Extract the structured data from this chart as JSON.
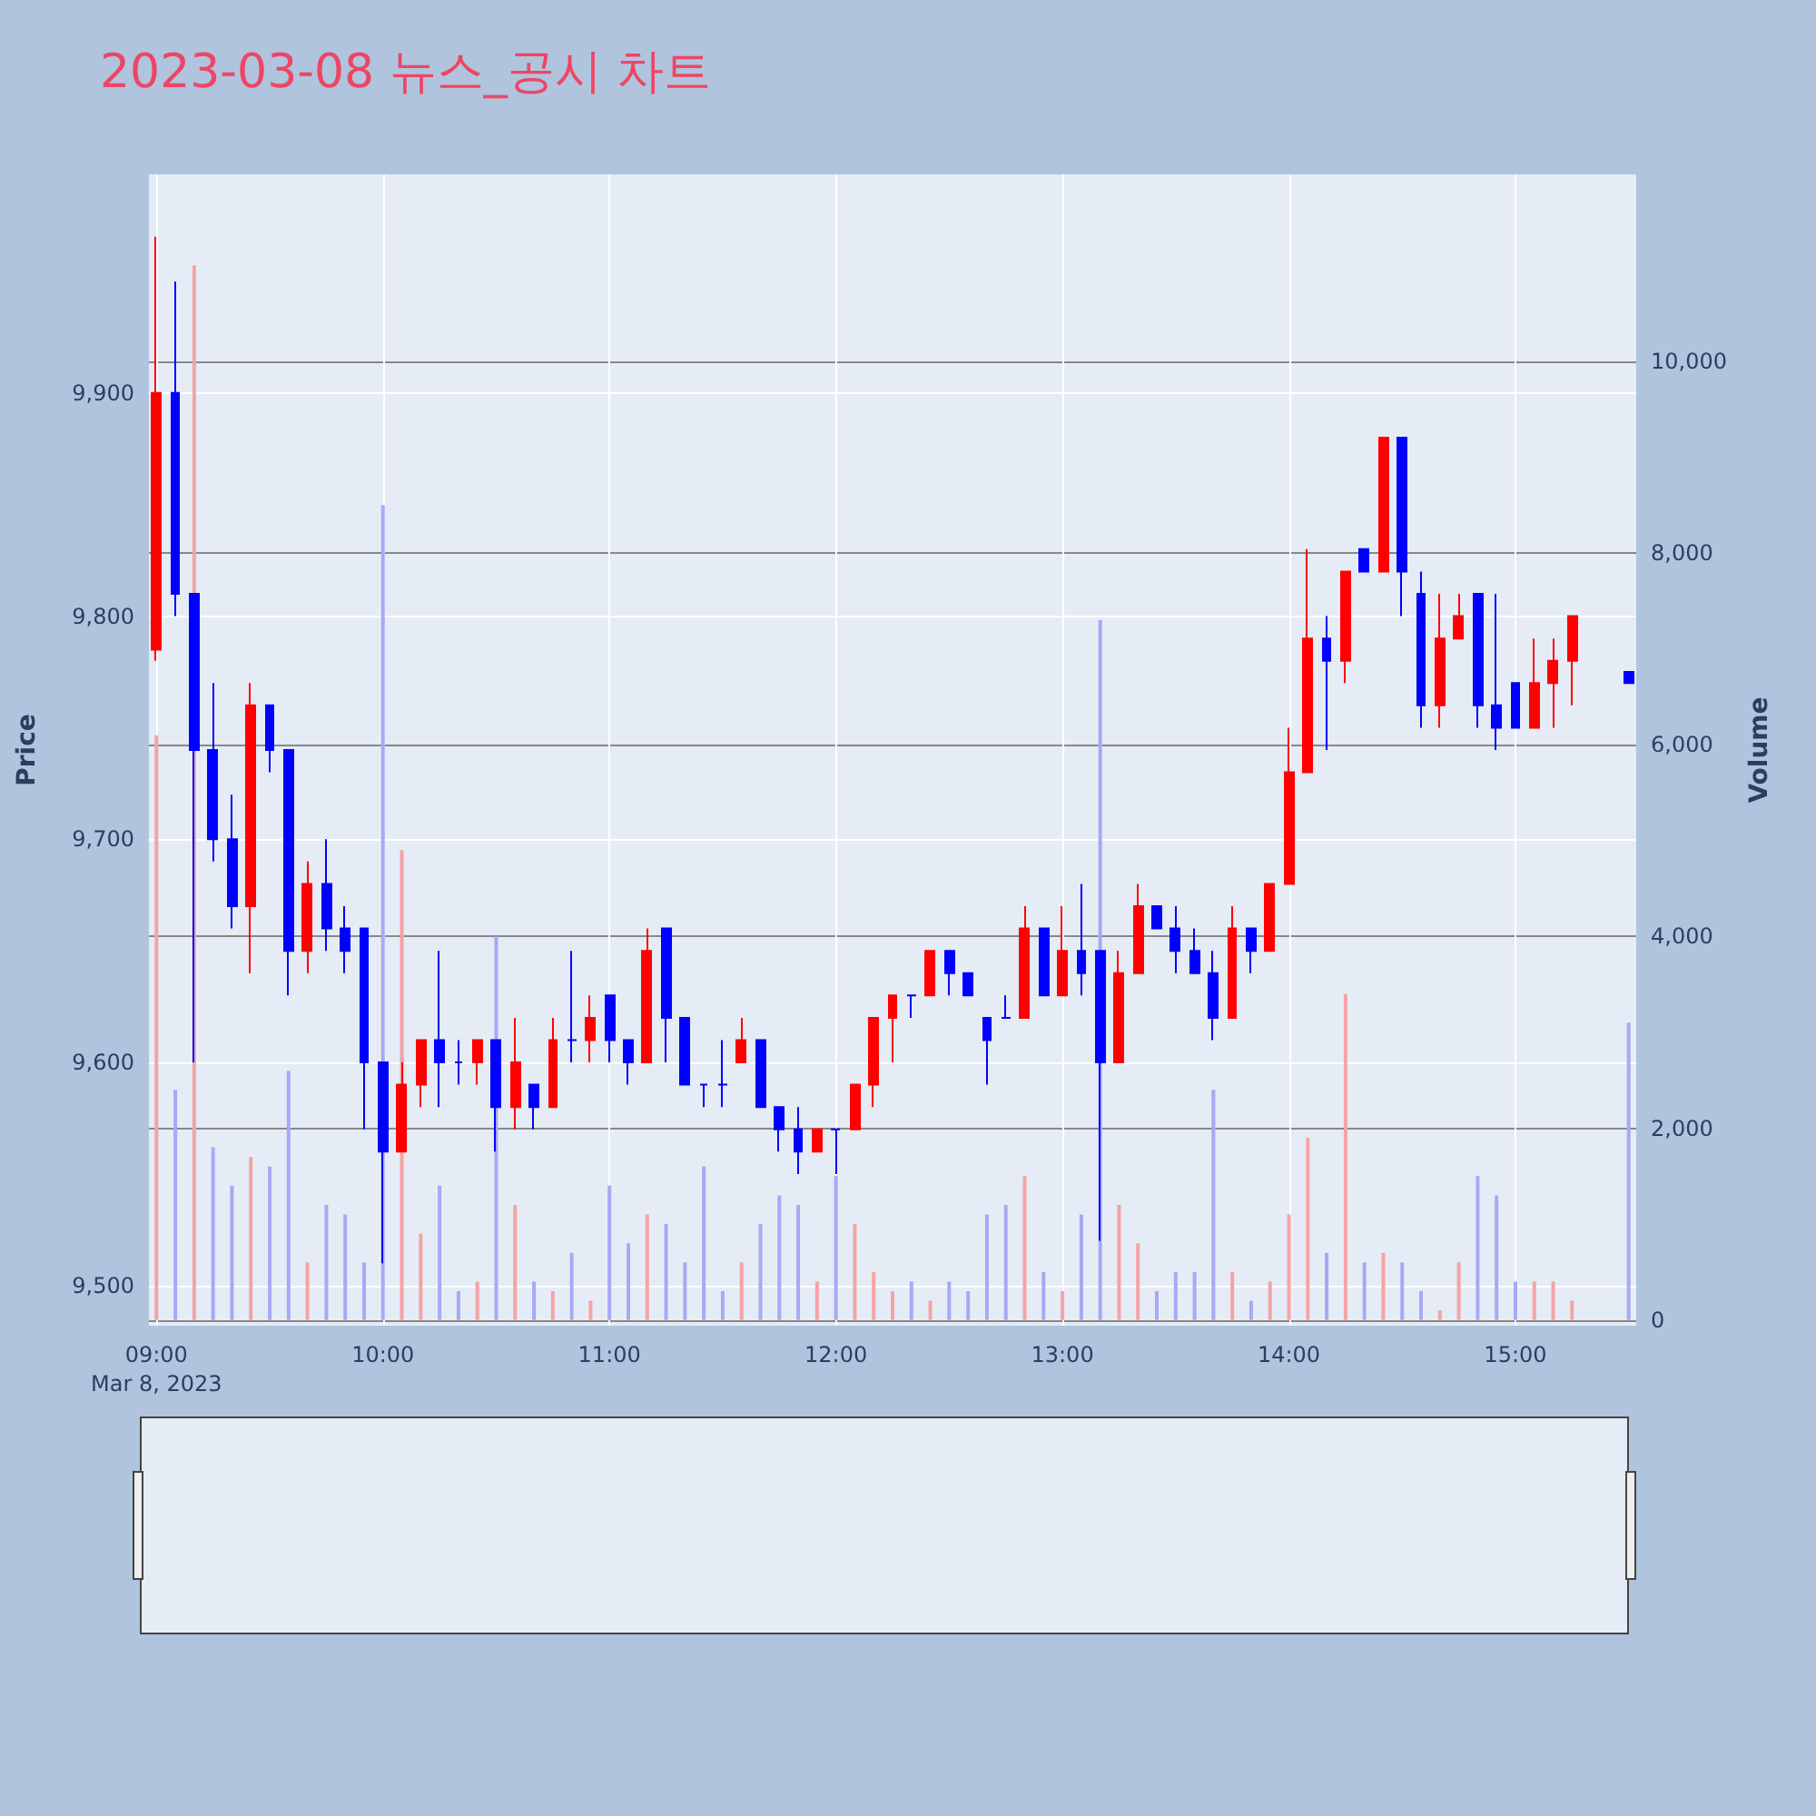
{
  "chart_data": {
    "type": "candlestick",
    "title": "2023-03-08 뉴스_공시 차트",
    "ylabel": "Price",
    "y2label": "Volume",
    "x": [
      "2023-03-08T09:00",
      "2023-03-08T09:05",
      "2023-03-08T09:10",
      "2023-03-08T09:15",
      "2023-03-08T09:20",
      "2023-03-08T09:25",
      "2023-03-08T09:30",
      "2023-03-08T09:35",
      "2023-03-08T09:40",
      "2023-03-08T09:45",
      "2023-03-08T09:50",
      "2023-03-08T09:55",
      "2023-03-08T10:00",
      "2023-03-08T10:05",
      "2023-03-08T10:10",
      "2023-03-08T10:15",
      "2023-03-08T10:20",
      "2023-03-08T10:25",
      "2023-03-08T10:30",
      "2023-03-08T10:35",
      "2023-03-08T10:40",
      "2023-03-08T10:45",
      "2023-03-08T10:50",
      "2023-03-08T10:55",
      "2023-03-08T11:00",
      "2023-03-08T11:05",
      "2023-03-08T11:10",
      "2023-03-08T11:15",
      "2023-03-08T11:20",
      "2023-03-08T11:25",
      "2023-03-08T11:30",
      "2023-03-08T11:35",
      "2023-03-08T11:40",
      "2023-03-08T11:45",
      "2023-03-08T11:50",
      "2023-03-08T11:55",
      "2023-03-08T12:00",
      "2023-03-08T12:05",
      "2023-03-08T12:10",
      "2023-03-08T12:15",
      "2023-03-08T12:20",
      "2023-03-08T12:25",
      "2023-03-08T12:30",
      "2023-03-08T12:35",
      "2023-03-08T12:40",
      "2023-03-08T12:45",
      "2023-03-08T12:50",
      "2023-03-08T12:55",
      "2023-03-08T13:00",
      "2023-03-08T13:05",
      "2023-03-08T13:10",
      "2023-03-08T13:15",
      "2023-03-08T13:20",
      "2023-03-08T13:25",
      "2023-03-08T13:30",
      "2023-03-08T13:35",
      "2023-03-08T13:40",
      "2023-03-08T13:45",
      "2023-03-08T13:50",
      "2023-03-08T13:55",
      "2023-03-08T14:00",
      "2023-03-08T14:05",
      "2023-03-08T14:10",
      "2023-03-08T14:15",
      "2023-03-08T14:20",
      "2023-03-08T14:25",
      "2023-03-08T14:30",
      "2023-03-08T14:35",
      "2023-03-08T14:40",
      "2023-03-08T14:45",
      "2023-03-08T14:50",
      "2023-03-08T14:55",
      "2023-03-08T15:00",
      "2023-03-08T15:05",
      "2023-03-08T15:10",
      "2023-03-08T15:15",
      "2023-03-08T15:30"
    ],
    "series": [
      {
        "ohlc": [
          [
            9785,
            9970,
            9780,
            9900
          ],
          [
            9900,
            9950,
            9800,
            9810
          ],
          [
            9810,
            9810,
            9600,
            9740
          ],
          [
            9740,
            9770,
            9690,
            9700
          ],
          [
            9700,
            9720,
            9660,
            9670
          ],
          [
            9670,
            9770,
            9640,
            9760
          ],
          [
            9760,
            9760,
            9730,
            9740
          ],
          [
            9740,
            9740,
            9630,
            9650
          ],
          [
            9650,
            9690,
            9640,
            9680
          ],
          [
            9680,
            9700,
            9650,
            9660
          ],
          [
            9660,
            9670,
            9640,
            9650
          ],
          [
            9660,
            9660,
            9570,
            9600
          ],
          [
            9600,
            9600,
            9510,
            9560
          ],
          [
            9560,
            9600,
            9560,
            9590
          ],
          [
            9590,
            9610,
            9580,
            9610
          ],
          [
            9610,
            9650,
            9580,
            9600
          ],
          [
            9600,
            9610,
            9590,
            9600
          ],
          [
            9600,
            9610,
            9590,
            9610
          ],
          [
            9610,
            9610,
            9560,
            9580
          ],
          [
            9580,
            9620,
            9570,
            9600
          ],
          [
            9590,
            9590,
            9570,
            9580
          ],
          [
            9580,
            9620,
            9580,
            9610
          ],
          [
            9610,
            9650,
            9600,
            9610
          ],
          [
            9610,
            9630,
            9600,
            9620
          ],
          [
            9630,
            9630,
            9600,
            9610
          ],
          [
            9610,
            9610,
            9590,
            9600
          ],
          [
            9600,
            9660,
            9600,
            9650
          ],
          [
            9660,
            9660,
            9600,
            9620
          ],
          [
            9620,
            9620,
            9590,
            9590
          ],
          [
            9590,
            9590,
            9580,
            9590
          ],
          [
            9590,
            9610,
            9580,
            9590
          ],
          [
            9600,
            9620,
            9600,
            9610
          ],
          [
            9610,
            9610,
            9580,
            9580
          ],
          [
            9580,
            9580,
            9560,
            9570
          ],
          [
            9570,
            9580,
            9550,
            9560
          ],
          [
            9560,
            9570,
            9560,
            9570
          ],
          [
            9570,
            9570,
            9550,
            9570
          ],
          [
            9570,
            9590,
            9570,
            9590
          ],
          [
            9590,
            9620,
            9580,
            9620
          ],
          [
            9620,
            9630,
            9600,
            9630
          ],
          [
            9630,
            9630,
            9620,
            9630
          ],
          [
            9630,
            9650,
            9630,
            9650
          ],
          [
            9650,
            9650,
            9630,
            9640
          ],
          [
            9640,
            9640,
            9630,
            9630
          ],
          [
            9620,
            9620,
            9590,
            9610
          ],
          [
            9620,
            9630,
            9620,
            9620
          ],
          [
            9620,
            9670,
            9620,
            9660
          ],
          [
            9660,
            9660,
            9630,
            9630
          ],
          [
            9630,
            9670,
            9630,
            9650
          ],
          [
            9650,
            9680,
            9630,
            9640
          ],
          [
            9650,
            9650,
            9520,
            9600
          ],
          [
            9600,
            9650,
            9600,
            9640
          ],
          [
            9640,
            9680,
            9640,
            9670
          ],
          [
            9670,
            9670,
            9660,
            9660
          ],
          [
            9660,
            9670,
            9640,
            9650
          ],
          [
            9650,
            9660,
            9640,
            9640
          ],
          [
            9640,
            9650,
            9610,
            9620
          ],
          [
            9620,
            9670,
            9620,
            9660
          ],
          [
            9660,
            9660,
            9640,
            9650
          ],
          [
            9650,
            9680,
            9650,
            9680
          ],
          [
            9680,
            9750,
            9680,
            9730
          ],
          [
            9730,
            9830,
            9730,
            9790
          ],
          [
            9790,
            9800,
            9740,
            9780
          ],
          [
            9780,
            9820,
            9770,
            9820
          ],
          [
            9830,
            9830,
            9820,
            9820
          ],
          [
            9820,
            9880,
            9820,
            9880
          ],
          [
            9880,
            9880,
            9800,
            9820
          ],
          [
            9810,
            9820,
            9750,
            9760
          ],
          [
            9760,
            9810,
            9750,
            9790
          ],
          [
            9790,
            9810,
            9790,
            9800
          ],
          [
            9810,
            9810,
            9750,
            9760
          ],
          [
            9760,
            9810,
            9740,
            9750
          ],
          [
            9770,
            9770,
            9750,
            9750
          ],
          [
            9750,
            9790,
            9750,
            9770
          ],
          [
            9770,
            9790,
            9750,
            9780
          ],
          [
            9780,
            9800,
            9760,
            9800
          ],
          [
            9775,
            9775,
            9770,
            9770
          ]
        ],
        "colors": [
          "#ff0000",
          "#0000ff",
          "#0000ff",
          "#0000ff",
          "#0000ff",
          "#ff0000",
          "#0000ff",
          "#0000ff",
          "#ff0000",
          "#0000ff",
          "#0000ff",
          "#0000ff",
          "#0000ff",
          "#ff0000",
          "#ff0000",
          "#0000ff",
          "#0000ff",
          "#ff0000",
          "#0000ff",
          "#ff0000",
          "#0000ff",
          "#ff0000",
          "#0000ff",
          "#ff0000",
          "#0000ff",
          "#0000ff",
          "#ff0000",
          "#0000ff",
          "#0000ff",
          "#0000ff",
          "#0000ff",
          "#ff0000",
          "#0000ff",
          "#0000ff",
          "#0000ff",
          "#ff0000",
          "#0000ff",
          "#ff0000",
          "#ff0000",
          "#ff0000",
          "#0000ff",
          "#ff0000",
          "#0000ff",
          "#0000ff",
          "#0000ff",
          "#0000ff",
          "#ff0000",
          "#0000ff",
          "#ff0000",
          "#0000ff",
          "#0000ff",
          "#ff0000",
          "#ff0000",
          "#0000ff",
          "#0000ff",
          "#0000ff",
          "#0000ff",
          "#ff0000",
          "#0000ff",
          "#ff0000",
          "#ff0000",
          "#ff0000",
          "#0000ff",
          "#ff0000",
          "#0000ff",
          "#ff0000",
          "#0000ff",
          "#0000ff",
          "#ff0000",
          "#ff0000",
          "#0000ff",
          "#0000ff",
          "#0000ff",
          "#ff0000",
          "#ff0000",
          "#ff0000",
          "#0000ff"
        ]
      },
      {
        "type": "bar",
        "axis": "y2",
        "values": [
          6100,
          2400,
          11000,
          1800,
          1400,
          1700,
          1600,
          2600,
          600,
          1200,
          1100,
          600,
          8500,
          4900,
          900,
          1400,
          300,
          400,
          4000,
          1200,
          400,
          300,
          700,
          200,
          1400,
          800,
          1100,
          1000,
          600,
          1600,
          300,
          600,
          1000,
          1300,
          1200,
          400,
          1500,
          1000,
          500,
          300,
          400,
          200,
          400,
          300,
          1100,
          1200,
          1500,
          500,
          300,
          1100,
          7300,
          1200,
          800,
          300,
          500,
          500,
          2400,
          500,
          200,
          400,
          1100,
          1900,
          700,
          3400,
          600,
          700,
          600,
          300,
          100,
          600,
          1500,
          1300,
          400,
          400,
          400,
          200,
          3100
        ],
        "colors": [
          "#f5a3a3",
          "#a8a8f5",
          "#f5a3a3",
          "#a8a8f5",
          "#a8a8f5",
          "#f5a3a3",
          "#a8a8f5",
          "#a8a8f5",
          "#f5a3a3",
          "#a8a8f5",
          "#a8a8f5",
          "#a8a8f5",
          "#a8a8f5",
          "#f5a3a3",
          "#f5a3a3",
          "#a8a8f5",
          "#a8a8f5",
          "#f5a3a3",
          "#a8a8f5",
          "#f5a3a3",
          "#a8a8f5",
          "#f5a3a3",
          "#a8a8f5",
          "#f5a3a3",
          "#a8a8f5",
          "#a8a8f5",
          "#f5a3a3",
          "#a8a8f5",
          "#a8a8f5",
          "#a8a8f5",
          "#a8a8f5",
          "#f5a3a3",
          "#a8a8f5",
          "#a8a8f5",
          "#a8a8f5",
          "#f5a3a3",
          "#a8a8f5",
          "#f5a3a3",
          "#f5a3a3",
          "#f5a3a3",
          "#a8a8f5",
          "#f5a3a3",
          "#a8a8f5",
          "#a8a8f5",
          "#a8a8f5",
          "#a8a8f5",
          "#f5a3a3",
          "#a8a8f5",
          "#f5a3a3",
          "#a8a8f5",
          "#a8a8f5",
          "#f5a3a3",
          "#f5a3a3",
          "#a8a8f5",
          "#a8a8f5",
          "#a8a8f5",
          "#a8a8f5",
          "#f5a3a3",
          "#a8a8f5",
          "#f5a3a3",
          "#f5a3a3",
          "#f5a3a3",
          "#a8a8f5",
          "#f5a3a3",
          "#a8a8f5",
          "#f5a3a3",
          "#a8a8f5",
          "#a8a8f5",
          "#f5a3a3",
          "#f5a3a3",
          "#a8a8f5",
          "#a8a8f5",
          "#a8a8f5",
          "#f5a3a3",
          "#f5a3a3",
          "#f5a3a3",
          "#a8a8f5"
        ]
      }
    ],
    "xlim": [
      "2023-03-08T08:58",
      "2023-03-08T15:32"
    ],
    "xticks": [
      {
        "value": "2023-03-08T09:00",
        "label": "09:00\nMar 8, 2023"
      },
      {
        "value": "2023-03-08T10:00",
        "label": "10:00"
      },
      {
        "value": "2023-03-08T11:00",
        "label": "11:00"
      },
      {
        "value": "2023-03-08T12:00",
        "label": "12:00"
      },
      {
        "value": "2023-03-08T13:00",
        "label": "13:00"
      },
      {
        "value": "2023-03-08T14:00",
        "label": "14:00"
      },
      {
        "value": "2023-03-08T15:00",
        "label": "15:00"
      }
    ],
    "ylim": [
      9482,
      9998
    ],
    "yticks": [
      {
        "value": 9500,
        "label": "9,500"
      },
      {
        "value": 9600,
        "label": "9,600"
      },
      {
        "value": 9700,
        "label": "9,700"
      },
      {
        "value": 9800,
        "label": "9,800"
      },
      {
        "value": 9900,
        "label": "9,900"
      }
    ],
    "y2lim": [
      -60,
      11950
    ],
    "y2ticks": [
      0,
      {
        "value": 2000,
        "label": "2,000"
      },
      {
        "value": 4000,
        "label": "4,000"
      },
      {
        "value": 6000,
        "label": "6,000"
      },
      {
        "value": 8000,
        "label": "8,000"
      },
      {
        "value": 10000,
        "label": "10,000"
      }
    ],
    "grid": true
  }
}
